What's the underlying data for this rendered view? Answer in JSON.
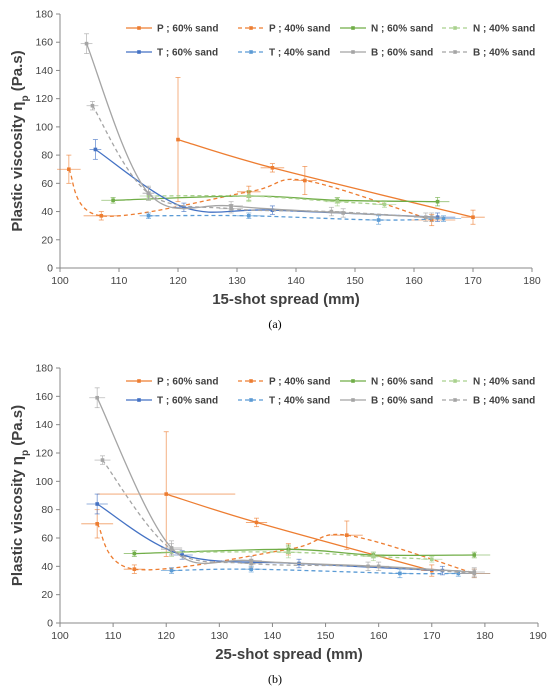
{
  "chart_data": [
    {
      "type": "line",
      "xlabel": "15-shot spread (mm)",
      "ylabel_main": "Plastic viscosity η",
      "ylabel_sub": "p",
      "ylabel_unit": " (Pa.s)",
      "caption": "(a)",
      "xlim": [
        100,
        180
      ],
      "ylim": [
        0,
        180
      ],
      "xticks": [
        100,
        110,
        120,
        130,
        140,
        150,
        160,
        170,
        180
      ],
      "yticks": [
        0,
        20,
        40,
        60,
        80,
        100,
        120,
        140,
        160,
        180
      ],
      "grid": false,
      "legend": "top, two rows",
      "series": [
        {
          "name": "P ; 60% sand",
          "color": "#ED7D31",
          "dash": false,
          "points": [
            {
              "x": 120,
              "y": 91,
              "ey": 44,
              "ex": 0
            },
            {
              "x": 136,
              "y": 71,
              "ey": 3,
              "ex": 2
            },
            {
              "x": 170,
              "y": 36,
              "ey": 5,
              "ex": 2
            }
          ]
        },
        {
          "name": "P ; 40% sand",
          "color": "#ED7D31",
          "dash": true,
          "points": [
            {
              "x": 101.5,
              "y": 70,
              "ey": 10,
              "ex": 2
            },
            {
              "x": 107,
              "y": 37,
              "ey": 3,
              "ex": 3
            },
            {
              "x": 132,
              "y": 54,
              "ey": 4,
              "ex": 2
            },
            {
              "x": 141.5,
              "y": 62,
              "ey": 10,
              "ex": 2
            },
            {
              "x": 163,
              "y": 34,
              "ey": 4,
              "ex": 4
            }
          ]
        },
        {
          "name": "N ; 60% sand",
          "color": "#70AD47",
          "dash": false,
          "points": [
            {
              "x": 109,
              "y": 48,
              "ey": 2,
              "ex": 2
            },
            {
              "x": 132,
              "y": 51,
              "ey": 3,
              "ex": 2
            },
            {
              "x": 147,
              "y": 48,
              "ey": 2,
              "ex": 2
            },
            {
              "x": 164,
              "y": 47,
              "ey": 3,
              "ex": 2
            }
          ]
        },
        {
          "name": "N ; 40% sand",
          "color": "#A9D18E",
          "dash": true,
          "points": [
            {
              "x": 115,
              "y": 51,
              "ey": 3,
              "ex": 1.5
            },
            {
              "x": 132,
              "y": 51,
              "ey": 4,
              "ex": 2
            },
            {
              "x": 147,
              "y": 47,
              "ey": 3,
              "ex": 2
            },
            {
              "x": 155,
              "y": 45,
              "ey": 2,
              "ex": 2
            }
          ]
        },
        {
          "name": "T ; 60% sand",
          "color": "#4472C4",
          "dash": false,
          "points": [
            {
              "x": 106,
              "y": 84,
              "ey": 7,
              "ex": 1
            },
            {
              "x": 121,
              "y": 43,
              "ey": 3,
              "ex": 2
            },
            {
              "x": 136,
              "y": 41,
              "ey": 3,
              "ex": 2
            },
            {
              "x": 164,
              "y": 36,
              "ey": 3,
              "ex": 3
            }
          ]
        },
        {
          "name": "T ; 40% sand",
          "color": "#5B9BD5",
          "dash": true,
          "points": [
            {
              "x": 115,
              "y": 37,
              "ey": 2,
              "ex": 1.5
            },
            {
              "x": 132,
              "y": 37,
              "ey": 2,
              "ex": 2
            },
            {
              "x": 154,
              "y": 34,
              "ey": 3,
              "ex": 2
            },
            {
              "x": 165,
              "y": 35,
              "ey": 2,
              "ex": 3
            }
          ]
        },
        {
          "name": "B ; 60% sand",
          "color": "#A5A5A5",
          "dash": false,
          "points": [
            {
              "x": 104.5,
              "y": 159,
              "ey": 7,
              "ex": 1
            },
            {
              "x": 115,
              "y": 53,
              "ey": 5,
              "ex": 1
            },
            {
              "x": 129,
              "y": 44,
              "ey": 3,
              "ex": 2
            },
            {
              "x": 148,
              "y": 39,
              "ey": 3,
              "ex": 2
            },
            {
              "x": 163,
              "y": 36,
              "ey": 3,
              "ex": 2
            }
          ]
        },
        {
          "name": "B ; 40% sand",
          "color": "#A5A5A5",
          "dash": true,
          "points": [
            {
              "x": 105.5,
              "y": 115,
              "ey": 3,
              "ex": 1
            },
            {
              "x": 115,
              "y": 53,
              "ey": 4,
              "ex": 1
            },
            {
              "x": 129,
              "y": 42,
              "ey": 3,
              "ex": 2
            },
            {
              "x": 146,
              "y": 40,
              "ey": 3,
              "ex": 2
            },
            {
              "x": 162,
              "y": 36,
              "ey": 3,
              "ex": 2
            }
          ]
        }
      ]
    },
    {
      "type": "line",
      "xlabel": "25-shot spread (mm)",
      "ylabel_main": "Plastic viscosity η",
      "ylabel_sub": "p",
      "ylabel_unit": " (Pa.s)",
      "caption": "(b)",
      "xlim": [
        100,
        190
      ],
      "ylim": [
        0,
        180
      ],
      "xticks": [
        100,
        110,
        120,
        130,
        140,
        150,
        160,
        170,
        180,
        190
      ],
      "yticks": [
        0,
        20,
        40,
        60,
        80,
        100,
        120,
        140,
        160,
        180
      ],
      "grid": false,
      "legend": "top, two rows",
      "series": [
        {
          "name": "P ; 60% sand",
          "color": "#ED7D31",
          "dash": false,
          "points": [
            {
              "x": 120,
              "y": 91,
              "ey": 44,
              "ex": 13
            },
            {
              "x": 137,
              "y": 71,
              "ey": 3,
              "ex": 2
            },
            {
              "x": 170,
              "y": 37,
              "ey": 4,
              "ex": 2
            }
          ]
        },
        {
          "name": "P ; 40% sand",
          "color": "#ED7D31",
          "dash": true,
          "points": [
            {
              "x": 107,
              "y": 70,
              "ey": 10,
              "ex": 3
            },
            {
              "x": 114,
              "y": 38,
              "ey": 3,
              "ex": 2
            },
            {
              "x": 143,
              "y": 52,
              "ey": 4,
              "ex": 2
            },
            {
              "x": 154,
              "y": 62,
              "ey": 10,
              "ex": 3
            },
            {
              "x": 178,
              "y": 35,
              "ey": 3,
              "ex": 3
            }
          ]
        },
        {
          "name": "N ; 60% sand",
          "color": "#70AD47",
          "dash": false,
          "points": [
            {
              "x": 114,
              "y": 49,
              "ey": 2,
              "ex": 2
            },
            {
              "x": 143,
              "y": 52,
              "ey": 3,
              "ex": 2
            },
            {
              "x": 159,
              "y": 48,
              "ey": 2,
              "ex": 2
            },
            {
              "x": 178,
              "y": 48,
              "ey": 2,
              "ex": 3
            }
          ]
        },
        {
          "name": "N ; 40% sand",
          "color": "#A9D18E",
          "dash": true,
          "points": [
            {
              "x": 121,
              "y": 50,
              "ey": 3,
              "ex": 2
            },
            {
              "x": 143,
              "y": 50,
              "ey": 4,
              "ex": 2
            },
            {
              "x": 159,
              "y": 47,
              "ey": 3,
              "ex": 2
            },
            {
              "x": 170,
              "y": 45,
              "ey": 2,
              "ex": 2
            }
          ]
        },
        {
          "name": "T ; 60% sand",
          "color": "#4472C4",
          "dash": false,
          "points": [
            {
              "x": 107,
              "y": 84,
              "ey": 7,
              "ex": 2
            },
            {
              "x": 123,
              "y": 48,
              "ey": 3,
              "ex": 2
            },
            {
              "x": 145,
              "y": 42,
              "ey": 3,
              "ex": 2
            },
            {
              "x": 172,
              "y": 37,
              "ey": 3,
              "ex": 3
            }
          ]
        },
        {
          "name": "T ; 40% sand",
          "color": "#5B9BD5",
          "dash": true,
          "points": [
            {
              "x": 121,
              "y": 37,
              "ey": 2,
              "ex": 2
            },
            {
              "x": 136,
              "y": 38,
              "ey": 2,
              "ex": 2
            },
            {
              "x": 164,
              "y": 35,
              "ey": 3,
              "ex": 2
            },
            {
              "x": 175,
              "y": 35,
              "ey": 2,
              "ex": 2
            }
          ]
        },
        {
          "name": "B ; 60% sand",
          "color": "#A5A5A5",
          "dash": false,
          "points": [
            {
              "x": 107,
              "y": 159,
              "ey": 7,
              "ex": 1.5
            },
            {
              "x": 121,
              "y": 53,
              "ey": 5,
              "ex": 2
            },
            {
              "x": 136,
              "y": 44,
              "ey": 3,
              "ex": 2
            },
            {
              "x": 160,
              "y": 40,
              "ey": 3,
              "ex": 2
            },
            {
              "x": 178,
              "y": 36,
              "ey": 3,
              "ex": 2
            }
          ]
        },
        {
          "name": "B ; 40% sand",
          "color": "#A5A5A5",
          "dash": true,
          "points": [
            {
              "x": 108,
              "y": 115,
              "ey": 3,
              "ex": 1.5
            },
            {
              "x": 121,
              "y": 52,
              "ey": 4,
              "ex": 2
            },
            {
              "x": 136,
              "y": 42,
              "ey": 3,
              "ex": 2
            },
            {
              "x": 158,
              "y": 40,
              "ey": 3,
              "ex": 2
            },
            {
              "x": 178,
              "y": 35,
              "ey": 3,
              "ex": 3
            }
          ]
        }
      ]
    }
  ]
}
